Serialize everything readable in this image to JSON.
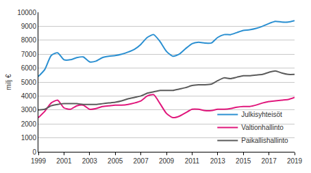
{
  "chart_data": {
    "type": "line",
    "y_label": "milj €",
    "x": [
      1999,
      1999.5,
      2000,
      2000.5,
      2001,
      2001.5,
      2002,
      2002.5,
      2003,
      2003.5,
      2004,
      2004.5,
      2005,
      2005.5,
      2006,
      2006.5,
      2007,
      2007.5,
      2008,
      2008.5,
      2009,
      2009.5,
      2010,
      2010.5,
      2011,
      2011.5,
      2012,
      2012.5,
      2013,
      2013.5,
      2014,
      2014.5,
      2015,
      2015.5,
      2016,
      2016.5,
      2017,
      2017.5,
      2018,
      2018.5,
      2019
    ],
    "series": [
      {
        "name": "Julkisyhteisöt",
        "color": "#2a8fd1",
        "values": [
          5400,
          5900,
          6900,
          7100,
          6600,
          6600,
          6750,
          6800,
          6450,
          6500,
          6750,
          6850,
          6900,
          7000,
          7150,
          7350,
          7700,
          8200,
          8400,
          7900,
          7200,
          6850,
          7000,
          7400,
          7750,
          7850,
          7800,
          7800,
          8200,
          8400,
          8400,
          8550,
          8700,
          8750,
          8850,
          9000,
          9200,
          9350,
          9300,
          9300,
          9400
        ]
      },
      {
        "name": "Valtionhallinto",
        "color": "#e0167b",
        "values": [
          2450,
          2900,
          3500,
          3700,
          3150,
          3050,
          3300,
          3350,
          3050,
          3100,
          3250,
          3300,
          3350,
          3350,
          3400,
          3500,
          3650,
          4000,
          4100,
          3450,
          2750,
          2450,
          2550,
          2800,
          3050,
          3050,
          2950,
          2950,
          3050,
          3050,
          3100,
          3200,
          3250,
          3250,
          3350,
          3500,
          3600,
          3650,
          3700,
          3750,
          3900
        ]
      },
      {
        "name": "Paikallishallinto",
        "color": "#5a5a5a",
        "values": [
          3000,
          3050,
          3300,
          3400,
          3450,
          3450,
          3450,
          3400,
          3400,
          3400,
          3450,
          3500,
          3550,
          3650,
          3800,
          3900,
          4000,
          4200,
          4300,
          4400,
          4400,
          4400,
          4500,
          4600,
          4750,
          4800,
          4800,
          4850,
          5100,
          5300,
          5250,
          5350,
          5450,
          5450,
          5500,
          5550,
          5700,
          5800,
          5650,
          5550,
          5550
        ]
      }
    ],
    "xlim": [
      1999,
      2019
    ],
    "xticks": [
      1999,
      2001,
      2003,
      2005,
      2007,
      2009,
      2011,
      2013,
      2015,
      2017,
      2019
    ],
    "ylim": [
      0,
      10000
    ],
    "yticks": [
      0,
      1000,
      2000,
      3000,
      4000,
      5000,
      6000,
      7000,
      8000,
      9000,
      10000
    ],
    "grid": true,
    "legend": "lower right"
  }
}
